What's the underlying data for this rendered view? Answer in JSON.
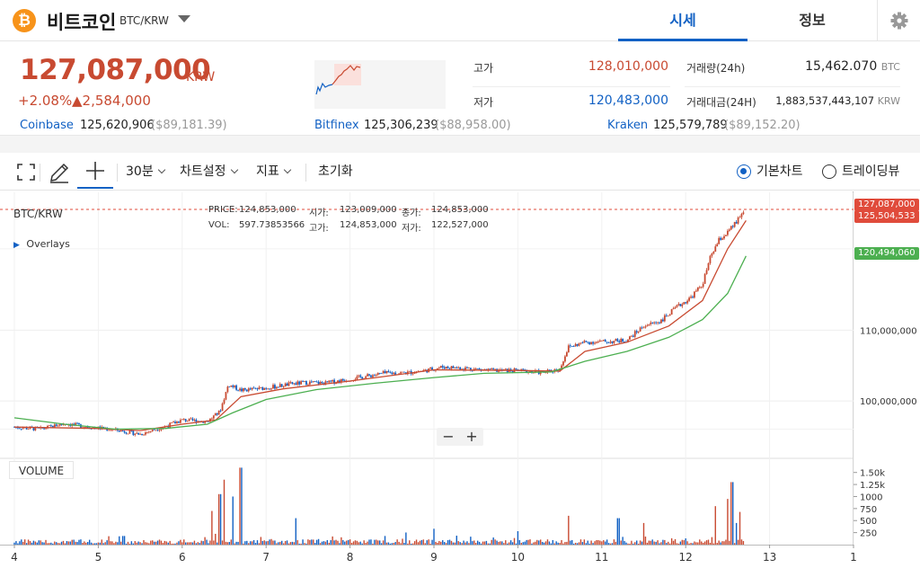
{
  "header": {
    "logo_glyph": "₿",
    "coin_name": "비트코인",
    "pair": "BTC/KRW",
    "tabs": [
      {
        "label": "시세",
        "active": true
      },
      {
        "label": "정보",
        "active": false
      }
    ],
    "settings_icon": "gear-icon"
  },
  "ticker": {
    "price": "127,087,000",
    "unit": "KRW",
    "change_rate": "+2.08%",
    "change_amount": "▲2,584,000",
    "high_label": "고가",
    "high": "128,010,000",
    "low_label": "저가",
    "low": "120,483,000",
    "volume_label": "거래량(24h)",
    "volume": "15,462.070",
    "volume_unit": "BTC",
    "value_label": "거래대금(24H)",
    "value": "1,883,537,443,107",
    "value_unit": "KRW"
  },
  "exchanges": [
    {
      "name": "Coinbase",
      "price": "125,620,906",
      "usd": "($89,181.39)"
    },
    {
      "name": "Bitfinex",
      "price": "125,306,239",
      "usd": "($88,958.00)"
    },
    {
      "name": "Kraken",
      "price": "125,579,789",
      "usd": "($89,152.20)"
    }
  ],
  "toolbar": {
    "fullscreen_icon": "fullscreen-icon",
    "pencil_icon": "pencil-icon",
    "crosshair_icon": "crosshair-icon",
    "interval": "30분",
    "chart_settings": "차트설정",
    "indicators": "지표",
    "reset": "초기화",
    "chart_types": [
      {
        "label": "기본차트",
        "selected": true
      },
      {
        "label": "트레이딩뷰",
        "selected": false
      }
    ]
  },
  "legend": {
    "pair": "BTC/KRW",
    "overlays": "Overlays",
    "price_label": "PRICE:",
    "price": "124,853,000",
    "open_label": "시가:",
    "open": "123,009,000",
    "close_label": "종가:",
    "close": "124,853,000",
    "vol_label": "VOL:",
    "vol": "597.73853566",
    "high_label": "고가:",
    "high": "124,853,000",
    "low_label": "저가:",
    "low": "122,527,000"
  },
  "zoom": {
    "minus": "−",
    "plus": "+"
  },
  "volume_panel_label": "VOLUME",
  "colors": {
    "up": "#c84a31",
    "down": "#1261c4",
    "ma_short": "#c84a31",
    "ma_long": "#4caf50"
  },
  "chart_data": {
    "type": "candlestick",
    "x_ticks": [
      "4",
      "5",
      "6",
      "7",
      "8",
      "9",
      "10",
      "11",
      "12",
      "13",
      "1"
    ],
    "y_ticks": [
      100000000,
      110000000
    ],
    "y_tick_labels": [
      "100,000,000",
      "110,000,000"
    ],
    "price_tags": [
      {
        "value": "127,087,000",
        "price": 127087000,
        "color": "#e04b3b"
      },
      {
        "value": "125,504,533",
        "price": 125504533,
        "color": "#e04b3b"
      },
      {
        "value": "120,494,060",
        "price": 120494060,
        "color": "#4caf50"
      }
    ],
    "ylim": [
      92000000,
      129500000
    ],
    "close_trend": [
      [
        4.0,
        96300000
      ],
      [
        4.3,
        96000000
      ],
      [
        4.6,
        96800000
      ],
      [
        4.9,
        96300000
      ],
      [
        5.2,
        95900000
      ],
      [
        5.5,
        95300000
      ],
      [
        5.8,
        96400000
      ],
      [
        6.0,
        97300000
      ],
      [
        6.3,
        97100000
      ],
      [
        6.45,
        98500000
      ],
      [
        6.55,
        102300000
      ],
      [
        6.7,
        101500000
      ],
      [
        6.9,
        101700000
      ],
      [
        7.1,
        102000000
      ],
      [
        7.3,
        102400000
      ],
      [
        7.5,
        102600000
      ],
      [
        7.7,
        102500000
      ],
      [
        7.9,
        102900000
      ],
      [
        8.1,
        103300000
      ],
      [
        8.4,
        103900000
      ],
      [
        8.7,
        104000000
      ],
      [
        8.9,
        104300000
      ],
      [
        9.1,
        104800000
      ],
      [
        9.4,
        104600000
      ],
      [
        9.7,
        104300000
      ],
      [
        10.0,
        104300000
      ],
      [
        10.3,
        104000000
      ],
      [
        10.5,
        104500000
      ],
      [
        10.6,
        107600000
      ],
      [
        10.8,
        108300000
      ],
      [
        11.1,
        108400000
      ],
      [
        11.3,
        108600000
      ],
      [
        11.5,
        110600000
      ],
      [
        11.7,
        111300000
      ],
      [
        11.9,
        113300000
      ],
      [
        12.05,
        114500000
      ],
      [
        12.2,
        116500000
      ],
      [
        12.3,
        120500000
      ],
      [
        12.4,
        122800000
      ],
      [
        12.5,
        123800000
      ],
      [
        12.62,
        125500000
      ],
      [
        12.7,
        127087000
      ]
    ],
    "ma_short": [
      [
        4.0,
        96300000
      ],
      [
        5.0,
        96100000
      ],
      [
        5.5,
        95800000
      ],
      [
        6.0,
        96700000
      ],
      [
        6.4,
        97300000
      ],
      [
        6.7,
        100600000
      ],
      [
        7.2,
        101700000
      ],
      [
        8.0,
        102800000
      ],
      [
        9.0,
        104400000
      ],
      [
        10.0,
        104300000
      ],
      [
        10.5,
        104200000
      ],
      [
        10.8,
        107000000
      ],
      [
        11.3,
        108300000
      ],
      [
        11.8,
        110600000
      ],
      [
        12.2,
        114200000
      ],
      [
        12.5,
        121500000
      ],
      [
        12.72,
        125504533
      ]
    ],
    "ma_long": [
      [
        4.0,
        97600000
      ],
      [
        4.6,
        96700000
      ],
      [
        5.2,
        96000000
      ],
      [
        5.8,
        96100000
      ],
      [
        6.3,
        96700000
      ],
      [
        6.6,
        98300000
      ],
      [
        7.0,
        100200000
      ],
      [
        7.6,
        101600000
      ],
      [
        8.3,
        102500000
      ],
      [
        9.0,
        103300000
      ],
      [
        9.6,
        103900000
      ],
      [
        10.4,
        104100000
      ],
      [
        10.8,
        105600000
      ],
      [
        11.3,
        107000000
      ],
      [
        11.8,
        109000000
      ],
      [
        12.2,
        111500000
      ],
      [
        12.5,
        115200000
      ],
      [
        12.72,
        120494060
      ]
    ],
    "volume_ticks": [
      "1.50k",
      "1.25k",
      "1000",
      "750",
      "500",
      "250"
    ],
    "volume_tick_values": [
      1500,
      1250,
      1000,
      750,
      500,
      250
    ],
    "volume_ylim": [
      0,
      1700
    ],
    "volume_spikes": [
      [
        5.3,
        180
      ],
      [
        6.35,
        700
      ],
      [
        6.45,
        1050
      ],
      [
        6.5,
        1350
      ],
      [
        6.6,
        1000
      ],
      [
        6.7,
        1600
      ],
      [
        7.35,
        550
      ],
      [
        9.0,
        330
      ],
      [
        10.0,
        280
      ],
      [
        10.6,
        600
      ],
      [
        11.2,
        550
      ],
      [
        11.5,
        450
      ],
      [
        12.35,
        800
      ],
      [
        12.5,
        950
      ],
      [
        12.55,
        1300
      ],
      [
        12.6,
        450
      ],
      [
        12.65,
        680
      ]
    ]
  }
}
